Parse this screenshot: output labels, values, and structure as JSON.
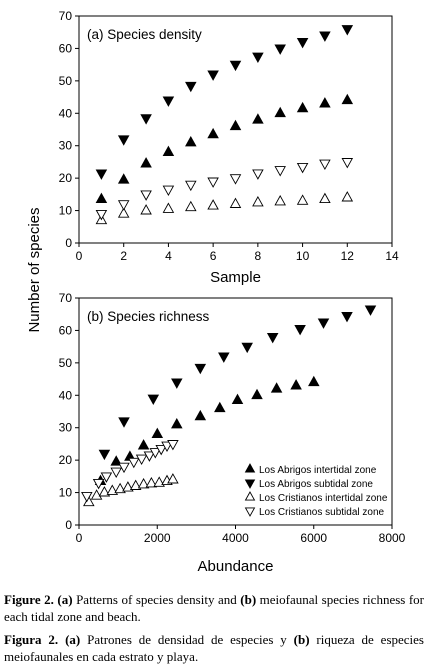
{
  "chart_data": [
    {
      "type": "scatter",
      "panel_label": "(a) Species density",
      "xlabel": "Sample",
      "ylabel": "Number of species",
      "xlim": [
        0,
        14
      ],
      "ylim": [
        0,
        70
      ],
      "x_ticks": [
        0,
        2,
        4,
        6,
        8,
        10,
        12,
        14
      ],
      "y_ticks": [
        0,
        10,
        20,
        30,
        40,
        50,
        60,
        70
      ],
      "grid": false,
      "x": [
        1,
        2,
        3,
        4,
        5,
        6,
        7,
        8,
        9,
        10,
        11,
        12
      ],
      "series": [
        {
          "marker": "triangle-up-filled",
          "values": [
            13.5,
            19.5,
            24.5,
            28,
            31,
            33.5,
            36,
            38,
            40,
            41.5,
            43,
            44
          ]
        },
        {
          "marker": "triangle-down-filled",
          "values": [
            21.5,
            32,
            38.5,
            44,
            48.5,
            52,
            55,
            57.5,
            60,
            62,
            64,
            66
          ]
        },
        {
          "marker": "triangle-up-open",
          "values": [
            7,
            9,
            10,
            10.5,
            11,
            11.5,
            12,
            12.5,
            12.8,
            13,
            13.5,
            14
          ]
        },
        {
          "marker": "triangle-down-open",
          "values": [
            9,
            12,
            15,
            16.5,
            18,
            19,
            20,
            21.5,
            22.5,
            23.5,
            24.5,
            25
          ]
        }
      ]
    },
    {
      "type": "scatter",
      "panel_label": "(b) Species richness",
      "xlabel": "Abundance",
      "ylabel": "Number of species",
      "xlim": [
        0,
        8000
      ],
      "ylim": [
        0,
        70
      ],
      "x_ticks": [
        0,
        2000,
        4000,
        6000,
        8000
      ],
      "y_ticks": [
        0,
        10,
        20,
        30,
        40,
        50,
        60,
        70
      ],
      "grid": false,
      "legend_position": "bottom-right",
      "series": [
        {
          "name": "Los Abrigos intertidal zone",
          "marker": "triangle-up-filled",
          "x": [
            550,
            950,
            1300,
            1650,
            2000,
            2500,
            3100,
            3600,
            4050,
            4550,
            5050,
            5550,
            6000
          ],
          "y": [
            13.5,
            19.5,
            21,
            24.5,
            28,
            31,
            33.5,
            36,
            38.5,
            40,
            42,
            43,
            44
          ]
        },
        {
          "name": "Los Abrigos subtidal zone",
          "marker": "triangle-down-filled",
          "x": [
            650,
            1150,
            1900,
            2500,
            3100,
            3700,
            4300,
            4950,
            5650,
            6250,
            6850,
            7450
          ],
          "y": [
            22,
            32,
            39,
            44,
            48.5,
            52,
            55,
            58,
            60.5,
            62.5,
            64.5,
            66.5
          ]
        },
        {
          "name": "Los Cristianos intertidal zone",
          "marker": "triangle-up-open",
          "x": [
            250,
            450,
            650,
            850,
            1050,
            1250,
            1450,
            1650,
            1850,
            2050,
            2250,
            2400
          ],
          "y": [
            7,
            9,
            10,
            10.5,
            11,
            11.5,
            12,
            12.5,
            12.8,
            13,
            13.5,
            14
          ]
        },
        {
          "name": "Los Cristianos subtidal zone",
          "marker": "triangle-down-open",
          "x": [
            200,
            500,
            700,
            950,
            1150,
            1400,
            1600,
            1800,
            1950,
            2100,
            2250,
            2400
          ],
          "y": [
            9,
            13,
            15,
            16.5,
            18,
            19.5,
            20.5,
            21.5,
            22.5,
            23.5,
            24.5,
            25
          ]
        }
      ]
    }
  ],
  "caption_en": {
    "fig_label": "Figure 2.",
    "a": "(a)",
    "part1": " Patterns of species density and ",
    "b": "(b)",
    "part2": " meiofaunal species richness for each tidal zone and beach."
  },
  "caption_es": {
    "fig_label": "Figura 2.",
    "a": "(a)",
    "part1": " Patrones de densidad de especies y ",
    "b": "(b)",
    "part2": " riqueza de especies meiofaunales en cada estrato y playa."
  }
}
